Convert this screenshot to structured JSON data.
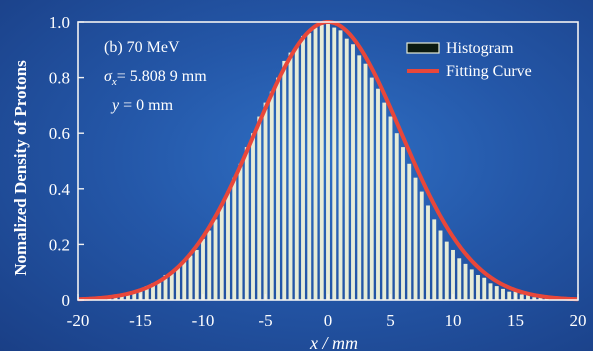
{
  "chart_data": {
    "type": "bar",
    "title": "",
    "xlabel": "x / mm",
    "ylabel": "Nomalized Density of Protons",
    "xlim": [
      -20,
      20
    ],
    "ylim": [
      0,
      1.0
    ],
    "x_ticks": [
      "-20",
      "-15",
      "-10",
      "-5",
      "0",
      "5",
      "10",
      "15",
      "20"
    ],
    "y_ticks": [
      "0",
      "0.2",
      "0.4",
      "0.6",
      "0.8",
      "1.0"
    ],
    "annotations": {
      "panel": "(b) 70 MeV",
      "sigma_symbol": "σ",
      "sigma_sub": "x",
      "sigma_value": "= 5.808 9 mm",
      "y_symbol": "y",
      "y_value": " = 0 mm"
    },
    "legend": {
      "placement": "top-right",
      "entries": [
        "Histogram",
        "Fitting Curve"
      ]
    },
    "series": [
      {
        "name": "Histogram",
        "kind": "bars",
        "x": [
          -19.5,
          -19,
          -18.5,
          -18,
          -17.5,
          -17,
          -16.5,
          -16,
          -15.5,
          -15,
          -14.5,
          -14,
          -13.5,
          -13,
          -12.5,
          -12,
          -11.5,
          -11,
          -10.5,
          -10,
          -9.5,
          -9,
          -8.5,
          -8,
          -7.5,
          -7,
          -6.5,
          -6,
          -5.5,
          -5,
          -4.5,
          -4,
          -3.5,
          -3,
          -2.5,
          -2,
          -1.5,
          -1,
          -0.5,
          0,
          0.5,
          1,
          1.5,
          2,
          2.5,
          3,
          3.5,
          4,
          4.5,
          5,
          5.5,
          6,
          6.5,
          7,
          7.5,
          8,
          8.5,
          9,
          9.5,
          10,
          10.5,
          11,
          11.5,
          12,
          12.5,
          13,
          13.5,
          14,
          14.5,
          15,
          15.5,
          16,
          16.5,
          17,
          17.5,
          18,
          18.5,
          19,
          19.5
        ],
        "values": [
          0.0,
          0.0,
          0.01,
          0.01,
          0.01,
          0.02,
          0.02,
          0.02,
          0.03,
          0.04,
          0.05,
          0.06,
          0.07,
          0.09,
          0.1,
          0.12,
          0.14,
          0.16,
          0.18,
          0.22,
          0.25,
          0.29,
          0.34,
          0.39,
          0.44,
          0.49,
          0.55,
          0.6,
          0.66,
          0.71,
          0.75,
          0.8,
          0.86,
          0.89,
          0.91,
          0.95,
          0.96,
          0.98,
          0.99,
          1.0,
          0.98,
          0.97,
          0.94,
          0.92,
          0.88,
          0.85,
          0.8,
          0.76,
          0.71,
          0.66,
          0.6,
          0.55,
          0.49,
          0.44,
          0.39,
          0.34,
          0.29,
          0.25,
          0.21,
          0.18,
          0.15,
          0.13,
          0.11,
          0.09,
          0.08,
          0.06,
          0.05,
          0.04,
          0.03,
          0.03,
          0.02,
          0.02,
          0.01,
          0.01,
          0.01,
          0.01,
          0.0,
          0.0,
          0.0
        ],
        "color": "#e6ecd8"
      },
      {
        "name": "Fitting Curve",
        "kind": "line",
        "model": "gaussian",
        "amplitude": 1.0,
        "center": 0,
        "sigma": 5.8089,
        "color": "#e8473a"
      }
    ]
  }
}
